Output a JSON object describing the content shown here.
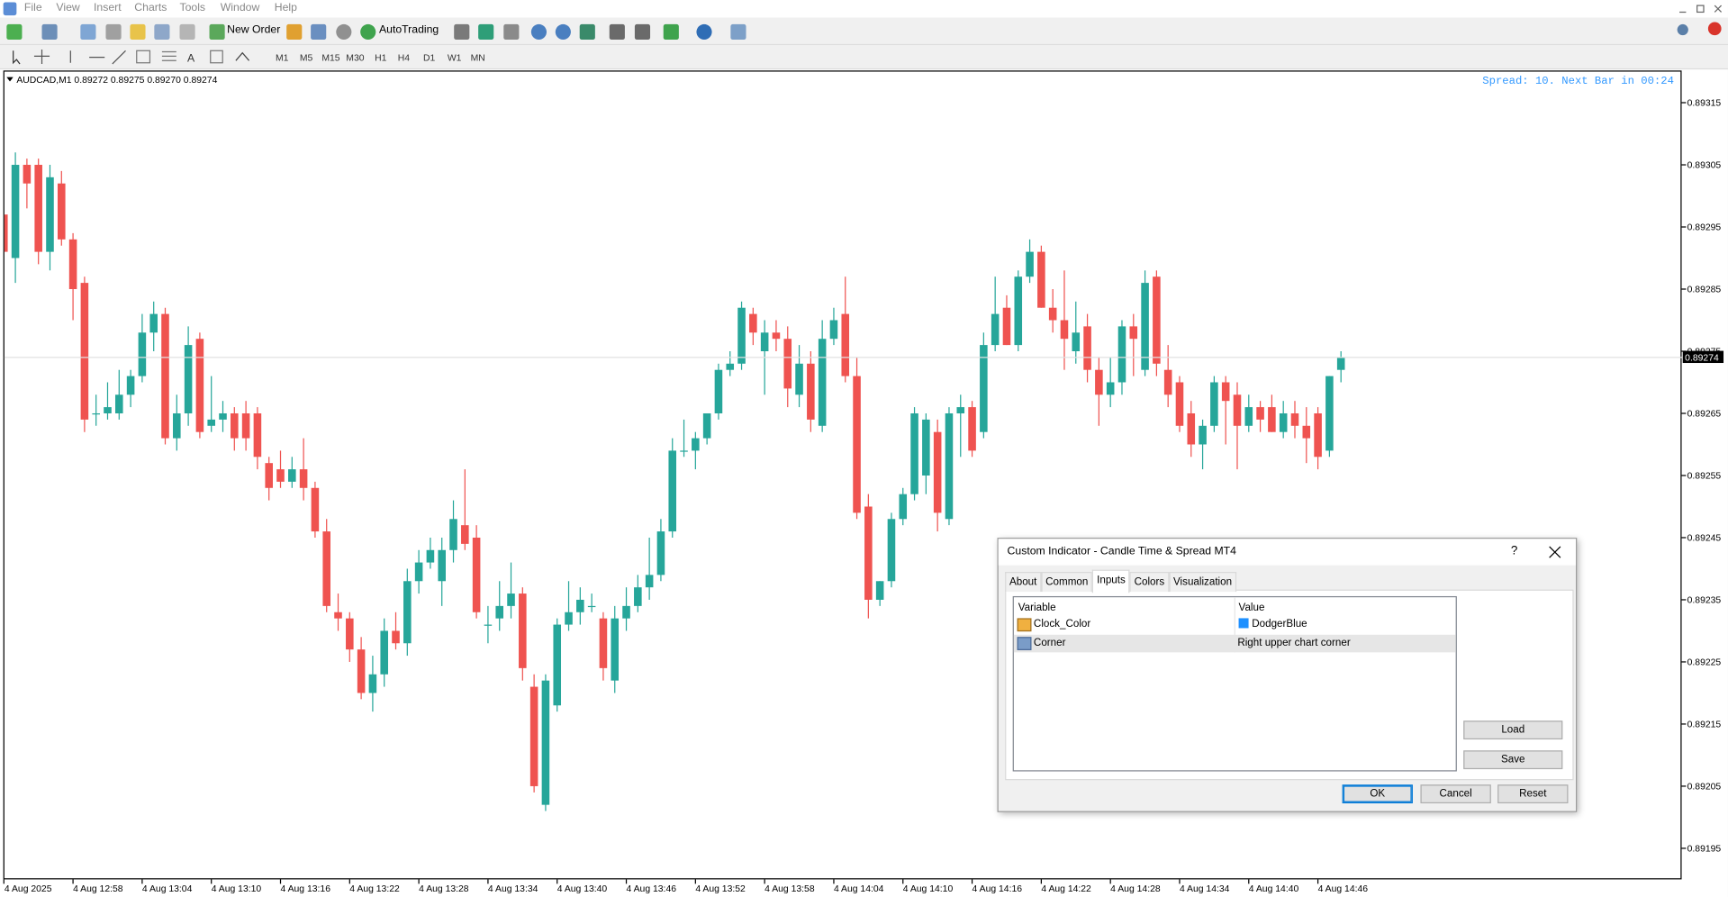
{
  "menu": [
    "File",
    "View",
    "Insert",
    "Charts",
    "Tools",
    "Window",
    "Help"
  ],
  "toolbar": {
    "new_order": "New Order",
    "autotrading": "AutoTrading",
    "timeframes": [
      "M1",
      "M5",
      "M15",
      "M30",
      "H1",
      "H4",
      "D1",
      "W1",
      "MN"
    ]
  },
  "chart_data": {
    "type": "candlestick",
    "title": "AUDCAD,M1  0.89272 0.89275 0.89270 0.89274",
    "annotation": "Spread: 10. Next Bar in 00:24",
    "up_color": "#26a69a",
    "down_color": "#ef5350",
    "grid": false,
    "x": [
      "4 Aug 12:52",
      "4 Aug 12:53",
      "4 Aug 12:54",
      "4 Aug 12:55",
      "4 Aug 12:56",
      "4 Aug 12:57",
      "4 Aug 12:58",
      "4 Aug 12:59",
      "4 Aug 13:00",
      "4 Aug 13:01",
      "4 Aug 13:02",
      "4 Aug 13:03",
      "4 Aug 13:04",
      "4 Aug 13:05",
      "4 Aug 13:06",
      "4 Aug 13:07",
      "4 Aug 13:08",
      "4 Aug 13:09",
      "4 Aug 13:10",
      "4 Aug 13:11",
      "4 Aug 13:12",
      "4 Aug 13:13",
      "4 Aug 13:14",
      "4 Aug 13:15",
      "4 Aug 13:16",
      "4 Aug 13:17",
      "4 Aug 13:18",
      "4 Aug 13:19",
      "4 Aug 13:20",
      "4 Aug 13:21",
      "4 Aug 13:22",
      "4 Aug 13:23",
      "4 Aug 13:24",
      "4 Aug 13:25",
      "4 Aug 13:26",
      "4 Aug 13:27",
      "4 Aug 13:28",
      "4 Aug 13:29",
      "4 Aug 13:30",
      "4 Aug 13:31",
      "4 Aug 13:32",
      "4 Aug 13:33",
      "4 Aug 13:34",
      "4 Aug 13:35",
      "4 Aug 13:36",
      "4 Aug 13:37",
      "4 Aug 13:38",
      "4 Aug 13:39",
      "4 Aug 13:40",
      "4 Aug 13:41",
      "4 Aug 13:42",
      "4 Aug 13:43",
      "4 Aug 13:44",
      "4 Aug 13:45",
      "4 Aug 13:46",
      "4 Aug 13:47",
      "4 Aug 13:48",
      "4 Aug 13:49",
      "4 Aug 13:50",
      "4 Aug 13:51",
      "4 Aug 13:52",
      "4 Aug 13:53",
      "4 Aug 13:54",
      "4 Aug 13:55",
      "4 Aug 13:56",
      "4 Aug 13:57",
      "4 Aug 13:58",
      "4 Aug 13:59",
      "4 Aug 14:00",
      "4 Aug 14:01",
      "4 Aug 14:02",
      "4 Aug 14:03",
      "4 Aug 14:04",
      "4 Aug 14:05",
      "4 Aug 14:06",
      "4 Aug 14:07",
      "4 Aug 14:08",
      "4 Aug 14:09",
      "4 Aug 14:10",
      "4 Aug 14:11",
      "4 Aug 14:12",
      "4 Aug 14:13",
      "4 Aug 14:14",
      "4 Aug 14:15",
      "4 Aug 14:16",
      "4 Aug 14:17",
      "4 Aug 14:18",
      "4 Aug 14:19",
      "4 Aug 14:20",
      "4 Aug 14:21",
      "4 Aug 14:22",
      "4 Aug 14:23",
      "4 Aug 14:24",
      "4 Aug 14:25",
      "4 Aug 14:26",
      "4 Aug 14:27",
      "4 Aug 14:28",
      "4 Aug 14:29",
      "4 Aug 14:30",
      "4 Aug 14:31",
      "4 Aug 14:32",
      "4 Aug 14:33",
      "4 Aug 14:34",
      "4 Aug 14:35",
      "4 Aug 14:36",
      "4 Aug 14:37",
      "4 Aug 14:38",
      "4 Aug 14:39",
      "4 Aug 14:40",
      "4 Aug 14:41",
      "4 Aug 14:42",
      "4 Aug 14:43",
      "4 Aug 14:44",
      "4 Aug 14:45",
      "4 Aug 14:46",
      "4 Aug 14:47",
      "4 Aug 14:48"
    ],
    "open": [
      0.89297,
      0.8929,
      0.89305,
      0.89305,
      0.89291,
      0.89302,
      0.89293,
      0.89286,
      0.89265,
      0.89265,
      0.89265,
      0.89268,
      0.89271,
      0.89278,
      0.89281,
      0.89261,
      0.89265,
      0.89277,
      0.89263,
      0.89264,
      0.89265,
      0.89265,
      0.89265,
      0.89257,
      0.89256,
      0.89254,
      0.89256,
      0.89253,
      0.89246,
      0.89233,
      0.89232,
      0.89227,
      0.8922,
      0.89223,
      0.8923,
      0.89228,
      0.89238,
      0.89241,
      0.89238,
      0.89243,
      0.89247,
      0.89245,
      0.89231,
      0.89232,
      0.89234,
      0.89236,
      0.89221,
      0.89202,
      0.89218,
      0.89231,
      0.89233,
      0.89234,
      0.89232,
      0.89222,
      0.89232,
      0.89234,
      0.89237,
      0.89239,
      0.89246,
      0.89259,
      0.89259,
      0.89261,
      0.89265,
      0.89272,
      0.89273,
      0.89281,
      0.89275,
      0.89278,
      0.89277,
      0.89268,
      0.89273,
      0.89263,
      0.89277,
      0.89281,
      0.89271,
      0.8925,
      0.89235,
      0.89238,
      0.89248,
      0.89252,
      0.89255,
      0.89262,
      0.89248,
      0.89265,
      0.89266,
      0.89262,
      0.89276,
      0.89282,
      0.89276,
      0.89287,
      0.89291,
      0.89282,
      0.8928,
      0.89275,
      0.89279,
      0.89272,
      0.89268,
      0.8927,
      0.89279,
      0.89272,
      0.89287,
      0.89272,
      0.8927,
      0.89265,
      0.8926,
      0.89263,
      0.8927,
      0.89268,
      0.89263,
      0.89266,
      0.89266,
      0.89262,
      0.89265,
      0.89263,
      0.89265,
      0.89259,
      0.89272
    ],
    "high": [
      0.893,
      0.89307,
      0.89306,
      0.89306,
      0.89305,
      0.89304,
      0.89294,
      0.89287,
      0.89268,
      0.8927,
      0.89272,
      0.89272,
      0.89281,
      0.89283,
      0.89282,
      0.89268,
      0.89279,
      0.89278,
      0.89271,
      0.89267,
      0.89266,
      0.89267,
      0.89266,
      0.89258,
      0.89259,
      0.89258,
      0.89261,
      0.89254,
      0.89248,
      0.89236,
      0.89233,
      0.89229,
      0.89226,
      0.89232,
      0.89233,
      0.8924,
      0.89243,
      0.89245,
      0.89245,
      0.89251,
      0.89256,
      0.89247,
      0.89234,
      0.89238,
      0.89241,
      0.89237,
      0.89223,
      0.89223,
      0.89232,
      0.89238,
      0.89237,
      0.89236,
      0.89233,
      0.89234,
      0.89237,
      0.89239,
      0.89245,
      0.89248,
      0.89261,
      0.89264,
      0.89262,
      0.89264,
      0.89273,
      0.89275,
      0.89283,
      0.89282,
      0.8928,
      0.8928,
      0.89279,
      0.89276,
      0.89275,
      0.8928,
      0.89282,
      0.89287,
      0.89274,
      0.89252,
      0.89238,
      0.89249,
      0.89253,
      0.89266,
      0.89265,
      0.89264,
      0.89266,
      0.89268,
      0.89267,
      0.89278,
      0.89287,
      0.89284,
      0.89288,
      0.89293,
      0.89292,
      0.89285,
      0.89288,
      0.89283,
      0.89281,
      0.89274,
      0.89274,
      0.8928,
      0.89281,
      0.89288,
      0.89288,
      0.89276,
      0.89271,
      0.89267,
      0.89264,
      0.89271,
      0.89271,
      0.8927,
      0.89268,
      0.89267,
      0.89268,
      0.89267,
      0.89267,
      0.89266,
      0.89266,
      0.89271,
      0.89275
    ],
    "low": [
      0.8928,
      0.89286,
      0.89298,
      0.89289,
      0.89288,
      0.89292,
      0.8928,
      0.89262,
      0.89263,
      0.89264,
      0.89264,
      0.89266,
      0.8927,
      0.89275,
      0.8926,
      0.89259,
      0.89263,
      0.89261,
      0.89262,
      0.89262,
      0.89259,
      0.89259,
      0.89256,
      0.89251,
      0.89253,
      0.89253,
      0.89251,
      0.89245,
      0.89233,
      0.8923,
      0.89225,
      0.89219,
      0.89217,
      0.89221,
      0.89227,
      0.89226,
      0.89236,
      0.8924,
      0.89234,
      0.89241,
      0.89243,
      0.89232,
      0.89228,
      0.8923,
      0.89232,
      0.89222,
      0.89204,
      0.89201,
      0.89217,
      0.8923,
      0.89231,
      0.89233,
      0.89222,
      0.8922,
      0.8923,
      0.89233,
      0.89235,
      0.89238,
      0.89245,
      0.89258,
      0.89256,
      0.8926,
      0.89264,
      0.89271,
      0.89272,
      0.89276,
      0.89268,
      0.89275,
      0.89266,
      0.89266,
      0.89262,
      0.89262,
      0.89276,
      0.8927,
      0.89248,
      0.89232,
      0.89234,
      0.89237,
      0.89247,
      0.89251,
      0.89252,
      0.89246,
      0.89247,
      0.89258,
      0.89258,
      0.89261,
      0.89275,
      0.89276,
      0.89275,
      0.89286,
      0.89282,
      0.89278,
      0.89272,
      0.89273,
      0.8927,
      0.89263,
      0.89266,
      0.89268,
      0.89271,
      0.89271,
      0.89271,
      0.89266,
      0.89262,
      0.89258,
      0.89256,
      0.89262,
      0.8926,
      0.89256,
      0.89262,
      0.89262,
      0.89262,
      0.89261,
      0.89261,
      0.89257,
      0.89256,
      0.89258,
      0.8927
    ],
    "close": [
      0.89291,
      0.89305,
      0.89302,
      0.89291,
      0.89303,
      0.89293,
      0.89285,
      0.89264,
      0.89265,
      0.89266,
      0.89268,
      0.89271,
      0.89278,
      0.89281,
      0.89261,
      0.89265,
      0.89276,
      0.89262,
      0.89264,
      0.89265,
      0.89261,
      0.89261,
      0.89258,
      0.89253,
      0.89254,
      0.89256,
      0.89253,
      0.89246,
      0.89234,
      0.89232,
      0.89227,
      0.8922,
      0.89223,
      0.8923,
      0.89228,
      0.89238,
      0.89241,
      0.89243,
      0.89243,
      0.89248,
      0.89244,
      0.89233,
      0.89231,
      0.89234,
      0.89236,
      0.89224,
      0.89205,
      0.89222,
      0.89231,
      0.89233,
      0.89235,
      0.89234,
      0.89224,
      0.89232,
      0.89234,
      0.89237,
      0.89239,
      0.89246,
      0.89259,
      0.89259,
      0.89261,
      0.89265,
      0.89272,
      0.89273,
      0.89282,
      0.89278,
      0.89278,
      0.89277,
      0.89269,
      0.89273,
      0.89264,
      0.89277,
      0.8928,
      0.89271,
      0.89249,
      0.89235,
      0.89238,
      0.89248,
      0.89252,
      0.89265,
      0.89264,
      0.89249,
      0.89265,
      0.89266,
      0.89259,
      0.89276,
      0.89281,
      0.89276,
      0.89287,
      0.89291,
      0.89282,
      0.8928,
      0.89277,
      0.89278,
      0.89272,
      0.89268,
      0.8927,
      0.89279,
      0.89277,
      0.89286,
      0.89273,
      0.89268,
      0.89263,
      0.8926,
      0.89263,
      0.8927,
      0.89267,
      0.89263,
      0.89266,
      0.89264,
      0.89262,
      0.89265,
      0.89263,
      0.89261,
      0.89258,
      0.89271,
      0.89274
    ],
    "ylim": [
      0.8919,
      0.8932
    ],
    "yticks": [
      0.89315,
      0.89305,
      0.89295,
      0.89285,
      0.89275,
      0.89265,
      0.89255,
      0.89245,
      0.89235,
      0.89225,
      0.89215,
      0.89205,
      0.89195
    ],
    "xticks": [
      {
        "value": "4 Aug 12:52",
        "label": "4 Aug 2025"
      },
      "4 Aug 12:58",
      "4 Aug 13:04",
      "4 Aug 13:10",
      "4 Aug 13:16",
      "4 Aug 13:22",
      "4 Aug 13:28",
      "4 Aug 13:34",
      "4 Aug 13:40",
      "4 Aug 13:46",
      "4 Aug 13:52",
      "4 Aug 13:58",
      "4 Aug 14:04",
      "4 Aug 14:10",
      "4 Aug 14:16",
      "4 Aug 14:22",
      "4 Aug 14:28",
      "4 Aug 14:34",
      "4 Aug 14:40",
      "4 Aug 14:46"
    ],
    "current_price": 0.89274
  },
  "dialog": {
    "title": "Custom Indicator - Candle Time & Spread MT4",
    "help": "?",
    "tabs": [
      "About",
      "Common",
      "Inputs",
      "Colors",
      "Visualization"
    ],
    "table": {
      "header": [
        "Variable",
        "Value"
      ],
      "rows": [
        [
          "Clock_Color",
          "DodgerBlue"
        ],
        [
          "Corner",
          "Right upper chart corner"
        ]
      ]
    },
    "side_buttons": [
      "Load",
      "Save"
    ],
    "buttons": [
      "OK",
      "Cancel",
      "Reset"
    ]
  }
}
